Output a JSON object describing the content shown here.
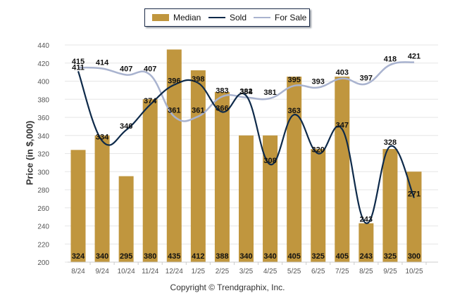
{
  "legend": {
    "median_label": "Median",
    "sold_label": "Sold",
    "forsale_label": "For Sale"
  },
  "colors": {
    "median": "#c0963e",
    "sold": "#0e2a4a",
    "forsale": "#a9b3cf",
    "grid": "#e6e6e6"
  },
  "footer": {
    "copyright": "Copyright © Trendgraphix, Inc."
  },
  "chart_data": {
    "type": "bar",
    "title": "",
    "xlabel": "",
    "ylabel": "Price (in $,000)",
    "ylim": [
      200,
      440
    ],
    "yticks": [
      200,
      220,
      240,
      260,
      280,
      300,
      320,
      340,
      360,
      380,
      400,
      420,
      440
    ],
    "grid": true,
    "legend_position": "top-center",
    "categories": [
      "8/24",
      "9/24",
      "10/24",
      "11/24",
      "12/24",
      "1/25",
      "2/25",
      "3/25",
      "4/25",
      "5/25",
      "6/25",
      "7/25",
      "8/25",
      "9/25",
      "10/25"
    ],
    "series": [
      {
        "name": "Median",
        "kind": "bar",
        "values": [
          324,
          340,
          295,
          380,
          435,
          412,
          388,
          340,
          340,
          405,
          325,
          405,
          243,
          325,
          300
        ]
      },
      {
        "name": "Sold",
        "kind": "line",
        "values": [
          411,
          334,
          346,
          374,
          396,
          398,
          366,
          384,
          308,
          363,
          320,
          347,
          243,
          328,
          271
        ]
      },
      {
        "name": "For Sale",
        "kind": "line",
        "values": [
          415,
          414,
          407,
          407,
          361,
          361,
          383,
          382,
          381,
          395,
          393,
          403,
          397,
          418,
          421
        ]
      }
    ]
  }
}
